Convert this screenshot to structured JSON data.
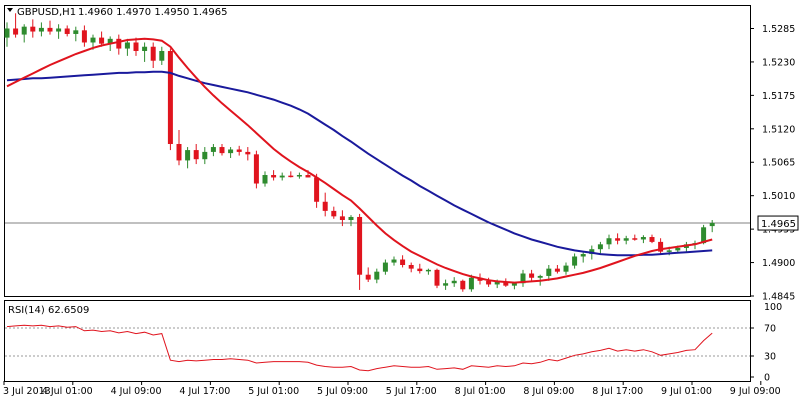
{
  "header": {
    "symbol": "GBPUSD,H1",
    "ohlc": "1.4960 1.4970 1.4950 1.4965"
  },
  "current_price_label": "1.4965",
  "colors": {
    "bull": "#2e8b2e",
    "bear": "#e0141e",
    "ma_fast": "#e0141e",
    "ma_slow": "#1a1a9c",
    "rsi": "#e0141e",
    "price_line": "#808080",
    "frame": "#000000"
  },
  "chart_data": [
    {
      "type": "candlestick",
      "title": "GBPUSD,H1",
      "ylim": [
        1.4845,
        1.5322
      ],
      "y_ticks": [
        "1.5285",
        "1.5230",
        "1.5175",
        "1.5120",
        "1.5065",
        "1.5010",
        "1.4955",
        "1.4900",
        "1.4845"
      ],
      "x_ticks": [
        "3 Jul 2013",
        "4 Jul 01:00",
        "4 Jul 09:00",
        "4 Jul 17:00",
        "5 Jul 01:00",
        "5 Jul 09:00",
        "5 Jul 17:00",
        "8 Jul 01:00",
        "8 Jul 09:00",
        "8 Jul 17:00",
        "9 Jul 01:00",
        "9 Jul 09:00"
      ],
      "candles": [
        [
          1.527,
          1.5295,
          1.5255,
          1.5285
        ],
        [
          1.5285,
          1.531,
          1.527,
          1.5275
        ],
        [
          1.5275,
          1.5292,
          1.5262,
          1.5288
        ],
        [
          1.5288,
          1.53,
          1.527,
          1.528
        ],
        [
          1.528,
          1.5295,
          1.5272,
          1.5286
        ],
        [
          1.5286,
          1.5298,
          1.5275,
          1.528
        ],
        [
          1.528,
          1.5292,
          1.5268,
          1.5285
        ],
        [
          1.5285,
          1.529,
          1.5272,
          1.5276
        ],
        [
          1.5276,
          1.5288,
          1.5264,
          1.5282
        ],
        [
          1.5282,
          1.529,
          1.5255,
          1.5262
        ],
        [
          1.5262,
          1.5275,
          1.525,
          1.527
        ],
        [
          1.527,
          1.528,
          1.5255,
          1.526
        ],
        [
          1.526,
          1.5272,
          1.5248,
          1.5268
        ],
        [
          1.5268,
          1.5275,
          1.5242,
          1.5252
        ],
        [
          1.5252,
          1.5268,
          1.524,
          1.5262
        ],
        [
          1.5262,
          1.527,
          1.524,
          1.5248
        ],
        [
          1.5248,
          1.5262,
          1.523,
          1.5255
        ],
        [
          1.5255,
          1.5262,
          1.522,
          1.5232
        ],
        [
          1.5232,
          1.5255,
          1.5225,
          1.5248
        ],
        [
          1.5248,
          1.5252,
          1.5085,
          1.5095
        ],
        [
          1.5095,
          1.5118,
          1.506,
          1.5068
        ],
        [
          1.5068,
          1.509,
          1.5055,
          1.5085
        ],
        [
          1.5085,
          1.5095,
          1.5062,
          1.507
        ],
        [
          1.507,
          1.509,
          1.5062,
          1.5082
        ],
        [
          1.5082,
          1.5095,
          1.5075,
          1.509
        ],
        [
          1.509,
          1.5095,
          1.5076,
          1.508
        ],
        [
          1.508,
          1.509,
          1.5072,
          1.5086
        ],
        [
          1.5086,
          1.5092,
          1.5076,
          1.5082
        ],
        [
          1.5082,
          1.509,
          1.5068,
          1.5078
        ],
        [
          1.5078,
          1.5084,
          1.5022,
          1.503
        ],
        [
          1.503,
          1.505,
          1.5025,
          1.5044
        ],
        [
          1.5044,
          1.5052,
          1.5035,
          1.504
        ],
        [
          1.504,
          1.5048,
          1.5035,
          1.5043
        ],
        [
          1.5043,
          1.505,
          1.504,
          1.5042
        ],
        [
          1.5042,
          1.5048,
          1.5038,
          1.5044
        ],
        [
          1.5044,
          1.5052,
          1.504,
          1.504
        ],
        [
          1.504,
          1.5046,
          1.499,
          1.5
        ],
        [
          1.5,
          1.5015,
          1.4976,
          1.4985
        ],
        [
          1.4985,
          1.4992,
          1.4972,
          1.4976
        ],
        [
          1.4976,
          1.4986,
          1.496,
          1.497
        ],
        [
          1.497,
          1.4978,
          1.496,
          1.4975
        ],
        [
          1.4975,
          1.498,
          1.4855,
          1.488
        ],
        [
          1.488,
          1.4892,
          1.4868,
          1.4872
        ],
        [
          1.4872,
          1.489,
          1.4866,
          1.4885
        ],
        [
          1.4885,
          1.4905,
          1.488,
          1.49
        ],
        [
          1.49,
          1.491,
          1.4895,
          1.4905
        ],
        [
          1.4905,
          1.4912,
          1.4892,
          1.4896
        ],
        [
          1.4896,
          1.49,
          1.4884,
          1.489
        ],
        [
          1.489,
          1.4898,
          1.4882,
          1.4886
        ],
        [
          1.4886,
          1.489,
          1.488,
          1.4888
        ],
        [
          1.4888,
          1.489,
          1.4858,
          1.4862
        ],
        [
          1.4862,
          1.4872,
          1.4855,
          1.4866
        ],
        [
          1.4866,
          1.4876,
          1.486,
          1.487
        ],
        [
          1.487,
          1.4872,
          1.4852,
          1.4856
        ],
        [
          1.4856,
          1.488,
          1.4852,
          1.4875
        ],
        [
          1.4875,
          1.4882,
          1.4864,
          1.487
        ],
        [
          1.487,
          1.4875,
          1.486,
          1.4864
        ],
        [
          1.4864,
          1.4872,
          1.4858,
          1.4868
        ],
        [
          1.4868,
          1.4874,
          1.486,
          1.4862
        ],
        [
          1.4862,
          1.4868,
          1.4856,
          1.4866
        ],
        [
          1.4866,
          1.4888,
          1.486,
          1.4882
        ],
        [
          1.4882,
          1.4888,
          1.487,
          1.4875
        ],
        [
          1.4875,
          1.488,
          1.4862,
          1.4878
        ],
        [
          1.4878,
          1.4896,
          1.487,
          1.489
        ],
        [
          1.489,
          1.4896,
          1.4882,
          1.4885
        ],
        [
          1.4885,
          1.49,
          1.488,
          1.4895
        ],
        [
          1.4895,
          1.4915,
          1.489,
          1.491
        ],
        [
          1.491,
          1.4918,
          1.49,
          1.4914
        ],
        [
          1.4914,
          1.4928,
          1.4905,
          1.4922
        ],
        [
          1.4922,
          1.4934,
          1.4915,
          1.493
        ],
        [
          1.493,
          1.4946,
          1.4922,
          1.494
        ],
        [
          1.494,
          1.4948,
          1.493,
          1.4936
        ],
        [
          1.4936,
          1.4944,
          1.493,
          1.494
        ],
        [
          1.494,
          1.4946,
          1.4936,
          1.4938
        ],
        [
          1.4938,
          1.4945,
          1.4932,
          1.4942
        ],
        [
          1.4942,
          1.4946,
          1.4932,
          1.4934
        ],
        [
          1.4934,
          1.494,
          1.4914,
          1.4918
        ],
        [
          1.4918,
          1.4926,
          1.4912,
          1.492
        ],
        [
          1.492,
          1.4928,
          1.4916,
          1.4924
        ],
        [
          1.4924,
          1.4934,
          1.4918,
          1.493
        ],
        [
          1.493,
          1.4936,
          1.4922,
          1.4932
        ],
        [
          1.4932,
          1.4962,
          1.493,
          1.4958
        ],
        [
          1.496,
          1.497,
          1.495,
          1.4965
        ]
      ],
      "ma_fast": [
        1.519,
        1.5197,
        1.5204,
        1.5211,
        1.5218,
        1.5225,
        1.5231,
        1.5237,
        1.5243,
        1.5248,
        1.5253,
        1.5257,
        1.526,
        1.5263,
        1.5266,
        1.5267,
        1.5268,
        1.5267,
        1.5265,
        1.5255,
        1.5237,
        1.522,
        1.5204,
        1.5189,
        1.5175,
        1.5162,
        1.515,
        1.5138,
        1.5126,
        1.5113,
        1.51,
        1.5087,
        1.5076,
        1.5066,
        1.5057,
        1.5049,
        1.504,
        1.5031,
        1.5021,
        1.5011,
        1.5002,
        1.4989,
        1.4975,
        1.4961,
        1.4948,
        1.4937,
        1.4927,
        1.4918,
        1.4911,
        1.4904,
        1.4897,
        1.4891,
        1.4886,
        1.4881,
        1.4877,
        1.4874,
        1.4871,
        1.4869,
        1.4868,
        1.4867,
        1.4868,
        1.4869,
        1.487,
        1.4872,
        1.4874,
        1.4877,
        1.488,
        1.4883,
        1.4887,
        1.4891,
        1.4896,
        1.4901,
        1.4906,
        1.4911,
        1.4915,
        1.4919,
        1.4922,
        1.4924,
        1.4926,
        1.4928,
        1.493,
        1.4934,
        1.4938
      ],
      "ma_slow": [
        1.52,
        1.5201,
        1.5202,
        1.5203,
        1.5203,
        1.5204,
        1.5205,
        1.5206,
        1.5207,
        1.5208,
        1.5209,
        1.521,
        1.5211,
        1.5212,
        1.5212,
        1.5213,
        1.5213,
        1.5214,
        1.5214,
        1.5212,
        1.5207,
        1.5203,
        1.5199,
        1.5195,
        1.5192,
        1.5189,
        1.5186,
        1.5183,
        1.518,
        1.5176,
        1.5172,
        1.5168,
        1.5163,
        1.5158,
        1.5152,
        1.5145,
        1.5136,
        1.5127,
        1.5118,
        1.5108,
        1.5099,
        1.5089,
        1.5079,
        1.507,
        1.5061,
        1.5052,
        1.5043,
        1.5035,
        1.5026,
        1.5018,
        1.501,
        1.5002,
        1.4994,
        1.4987,
        1.498,
        1.4973,
        1.4966,
        1.496,
        1.4954,
        1.4948,
        1.4943,
        1.4938,
        1.4934,
        1.493,
        1.4926,
        1.4923,
        1.492,
        1.4918,
        1.4916,
        1.4914,
        1.4913,
        1.4912,
        1.4912,
        1.4912,
        1.4913,
        1.4913,
        1.4914,
        1.4915,
        1.4916,
        1.4917,
        1.4918,
        1.4919,
        1.492
      ]
    },
    {
      "type": "line",
      "title": "RSI(14) 62.6509",
      "ylim": [
        0,
        100
      ],
      "y_ticks": [
        "70",
        "30",
        "0"
      ],
      "y_top_label": "100",
      "levels": [
        70,
        30
      ],
      "rsi": [
        72,
        73,
        74,
        73,
        74,
        72,
        73,
        71,
        72,
        66,
        67,
        65,
        66,
        63,
        65,
        62,
        64,
        60,
        62,
        24,
        22,
        24,
        23,
        24,
        25,
        25,
        26,
        25,
        24,
        20,
        21,
        22,
        22,
        22,
        22,
        21,
        17,
        15,
        14,
        14,
        15,
        10,
        9,
        12,
        14,
        16,
        15,
        14,
        14,
        15,
        11,
        12,
        13,
        11,
        16,
        15,
        14,
        16,
        15,
        16,
        20,
        19,
        21,
        25,
        23,
        27,
        31,
        33,
        36,
        38,
        41,
        37,
        39,
        37,
        39,
        36,
        31,
        33,
        35,
        38,
        39,
        52,
        62.6509
      ]
    }
  ]
}
